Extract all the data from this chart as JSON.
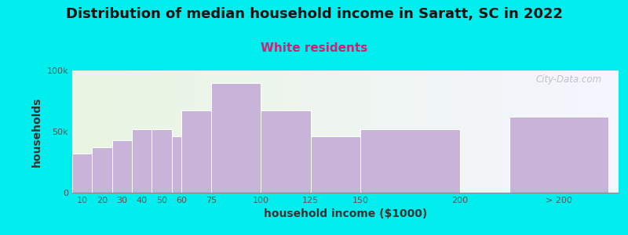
{
  "title": "Distribution of median household income in Saratt, SC in 2022",
  "subtitle": "White residents",
  "xlabel": "household income ($1000)",
  "ylabel": "households",
  "bar_color": "#c9b4d9",
  "background_color": "#00eeee",
  "plot_bg_left": "#e8f5e2",
  "plot_bg_right": "#f5f5ff",
  "categories": [
    "10",
    "20",
    "30",
    "40",
    "50",
    "60",
    "75",
    "100",
    "125",
    "150",
    "200",
    "> 200"
  ],
  "values": [
    32000,
    37000,
    43000,
    52000,
    52000,
    46000,
    67000,
    90000,
    67000,
    46000,
    52000,
    62000
  ],
  "ylim": [
    0,
    100000
  ],
  "ytick_labels": [
    "0",
    "50k",
    "100k"
  ],
  "title_fontsize": 13,
  "subtitle_fontsize": 11,
  "axis_label_fontsize": 10,
  "tick_fontsize": 8,
  "watermark_text": "City-Data.com",
  "bar_lefts": [
    5,
    15,
    25,
    35,
    45,
    55,
    60,
    75,
    100,
    125,
    150,
    225
  ],
  "bar_widths": [
    10,
    10,
    10,
    10,
    10,
    10,
    15,
    25,
    25,
    25,
    50,
    50
  ],
  "xtick_positions": [
    10,
    20,
    30,
    40,
    50,
    60,
    75,
    100,
    125,
    150,
    200,
    250
  ],
  "xtick_labels": [
    "10",
    "20",
    "30",
    "40",
    "50",
    "60",
    "75",
    "100",
    "125",
    "150",
    "200",
    "> 200"
  ],
  "xlim": [
    5,
    280
  ]
}
